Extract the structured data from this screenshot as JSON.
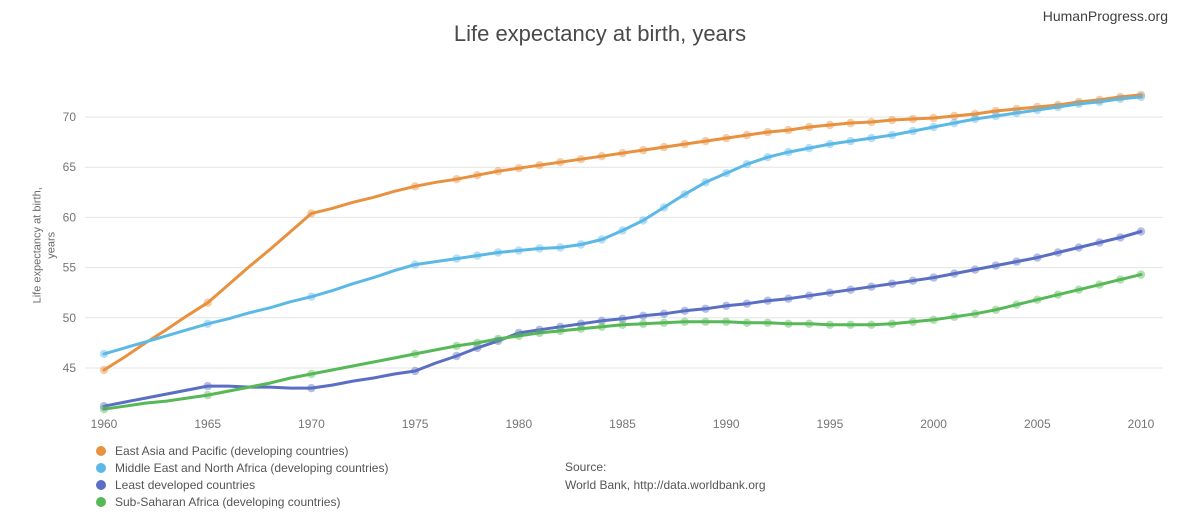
{
  "header": {
    "title": "Life expectancy at birth, years",
    "brand": "HumanProgress.org"
  },
  "axes": {
    "y_label_line1": "Life expectancy at birth,",
    "y_label_line2": "years"
  },
  "legend": [
    {
      "id": "eap",
      "label": "East Asia and Pacific (developing countries)",
      "color": "#E8913F"
    },
    {
      "id": "mena",
      "label": "Middle East and North Africa (developing countries)",
      "color": "#5CB9E6"
    },
    {
      "id": "ldc",
      "label": "Least developed countries",
      "color": "#5A6EC3"
    },
    {
      "id": "ssa",
      "label": "Sub-Saharan Africa (developing countries)",
      "color": "#56B857"
    }
  ],
  "source": {
    "line1": "Source:",
    "line2": "World Bank, http://data.worldbank.org"
  },
  "chart_data": {
    "type": "line",
    "title": "Life expectancy at birth, years",
    "xlabel": "",
    "ylabel": "Life expectancy at birth, years",
    "grid": true,
    "legend_position": "bottom-left",
    "ylim": [
      40.3,
      74
    ],
    "yticks": [
      45,
      50,
      55,
      60,
      65,
      70
    ],
    "xticks": [
      1960,
      1965,
      1970,
      1975,
      1980,
      1985,
      1990,
      1995,
      2000,
      2005,
      2010
    ],
    "x": [
      1960,
      1961,
      1962,
      1963,
      1964,
      1965,
      1966,
      1967,
      1968,
      1969,
      1970,
      1971,
      1972,
      1973,
      1974,
      1975,
      1976,
      1977,
      1978,
      1979,
      1980,
      1981,
      1982,
      1983,
      1984,
      1985,
      1986,
      1987,
      1988,
      1989,
      1990,
      1991,
      1992,
      1993,
      1994,
      1995,
      1996,
      1997,
      1998,
      1999,
      2000,
      2001,
      2002,
      2003,
      2004,
      2005,
      2006,
      2007,
      2008,
      2009,
      2010
    ],
    "series": [
      {
        "id": "eap",
        "name": "East Asia and Pacific (developing countries)",
        "color": "#E8913F",
        "values": [
          44.8,
          46.1,
          47.5,
          48.8,
          50.2,
          51.5,
          53.3,
          55.1,
          56.8,
          58.6,
          60.4,
          60.9,
          61.5,
          62.0,
          62.6,
          63.1,
          63.5,
          63.8,
          64.2,
          64.6,
          64.9,
          65.2,
          65.5,
          65.8,
          66.1,
          66.4,
          66.7,
          67.0,
          67.3,
          67.6,
          67.9,
          68.2,
          68.5,
          68.7,
          69.0,
          69.2,
          69.4,
          69.5,
          69.7,
          69.8,
          69.9,
          70.1,
          70.3,
          70.6,
          70.8,
          71.0,
          71.2,
          71.5,
          71.7,
          72.0,
          72.2
        ]
      },
      {
        "id": "mena",
        "name": "Middle East and North Africa (developing countries)",
        "color": "#5CB9E6",
        "values": [
          46.4,
          47.0,
          47.6,
          48.2,
          48.8,
          49.4,
          49.9,
          50.5,
          51.0,
          51.6,
          52.1,
          52.7,
          53.4,
          54.0,
          54.7,
          55.3,
          55.6,
          55.9,
          56.2,
          56.5,
          56.7,
          56.9,
          57.0,
          57.3,
          57.8,
          58.7,
          59.7,
          61.0,
          62.3,
          63.5,
          64.4,
          65.3,
          66.0,
          66.5,
          66.9,
          67.3,
          67.6,
          67.9,
          68.2,
          68.6,
          69.0,
          69.4,
          69.8,
          70.1,
          70.4,
          70.7,
          71.0,
          71.3,
          71.5,
          71.8,
          72.0
        ]
      },
      {
        "id": "ldc",
        "name": "Least developed countries",
        "color": "#5A6EC3",
        "values": [
          41.2,
          41.6,
          42.0,
          42.4,
          42.8,
          43.2,
          43.2,
          43.1,
          43.1,
          43.0,
          43.0,
          43.3,
          43.7,
          44.0,
          44.4,
          44.7,
          45.5,
          46.2,
          47.0,
          47.7,
          48.5,
          48.8,
          49.1,
          49.4,
          49.7,
          49.9,
          50.2,
          50.4,
          50.7,
          50.9,
          51.2,
          51.4,
          51.7,
          51.9,
          52.2,
          52.5,
          52.8,
          53.1,
          53.4,
          53.7,
          54.0,
          54.4,
          54.8,
          55.2,
          55.6,
          56.0,
          56.5,
          57.0,
          57.5,
          58.0,
          58.6
        ]
      },
      {
        "id": "ssa",
        "name": "Sub-Saharan Africa (developing countries)",
        "color": "#56B857",
        "values": [
          40.9,
          41.2,
          41.5,
          41.7,
          42.0,
          42.3,
          42.7,
          43.1,
          43.5,
          44.0,
          44.4,
          44.8,
          45.2,
          45.6,
          46.0,
          46.4,
          46.8,
          47.2,
          47.5,
          47.9,
          48.2,
          48.5,
          48.7,
          48.9,
          49.1,
          49.3,
          49.4,
          49.5,
          49.6,
          49.6,
          49.6,
          49.5,
          49.5,
          49.4,
          49.4,
          49.3,
          49.3,
          49.3,
          49.4,
          49.6,
          49.8,
          50.1,
          50.4,
          50.8,
          51.3,
          51.8,
          52.3,
          52.8,
          53.3,
          53.8,
          54.3
        ]
      }
    ]
  }
}
